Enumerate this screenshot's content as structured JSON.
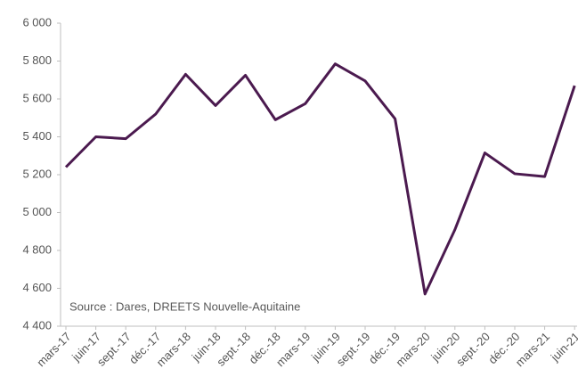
{
  "chart_data": {
    "type": "line",
    "annotation": "Source : Dares, DREETS Nouvelle-Aquitaine",
    "categories": [
      "mars-17",
      "juin-17",
      "sept.-17",
      "déc.-17",
      "mars-18",
      "juin-18",
      "sept.-18",
      "déc.-18",
      "mars-19",
      "juin-19",
      "sept.-19",
      "déc.-19",
      "mars-20",
      "juin-20",
      "sept.-20",
      "déc.-20",
      "mars-21",
      "juin-21"
    ],
    "values": [
      5240,
      5400,
      5390,
      5520,
      5730,
      5565,
      5725,
      5490,
      5575,
      5785,
      5695,
      5495,
      4570,
      4910,
      5315,
      5205,
      5190,
      5670
    ],
    "color": "#4b1a4f",
    "ylim": [
      4400,
      6000
    ],
    "yticks": [
      {
        "value": 4400,
        "label": "4 400"
      },
      {
        "value": 4600,
        "label": "4 600"
      },
      {
        "value": 4800,
        "label": "4 800"
      },
      {
        "value": 5000,
        "label": "5 000"
      },
      {
        "value": 5200,
        "label": "5 200"
      },
      {
        "value": 5400,
        "label": "5 400"
      },
      {
        "value": 5600,
        "label": "5 600"
      },
      {
        "value": 5800,
        "label": "5 800"
      },
      {
        "value": 6000,
        "label": "6 000"
      }
    ],
    "grid": false
  }
}
